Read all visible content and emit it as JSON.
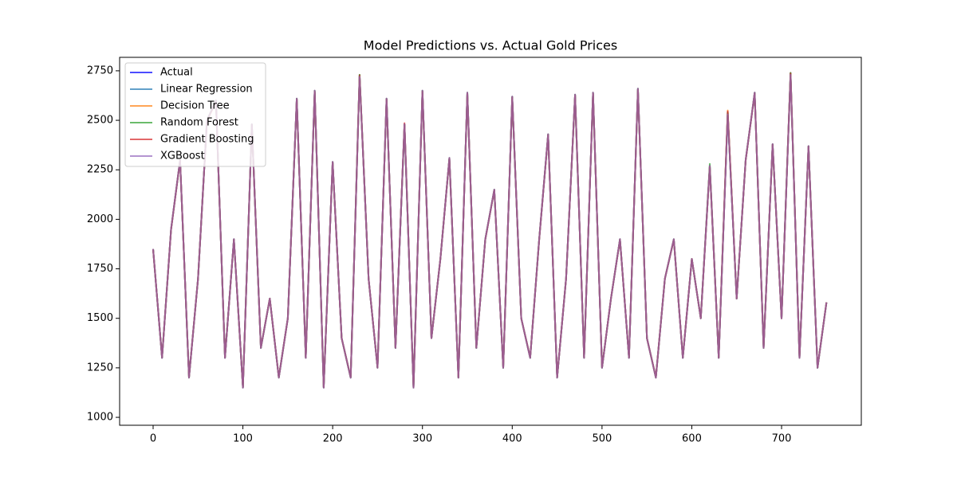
{
  "chart_data": {
    "type": "line",
    "title": "Model Predictions vs. Actual Gold Prices",
    "x": [
      0,
      10,
      20,
      30,
      40,
      50,
      60,
      70,
      80,
      90,
      100,
      110,
      120,
      130,
      140,
      150,
      160,
      170,
      180,
      190,
      200,
      210,
      220,
      230,
      240,
      250,
      260,
      270,
      280,
      290,
      300,
      310,
      320,
      330,
      340,
      350,
      360,
      370,
      380,
      390,
      400,
      410,
      420,
      430,
      440,
      450,
      460,
      470,
      480,
      490,
      500,
      510,
      520,
      530,
      540,
      550,
      560,
      570,
      580,
      590,
      600,
      610,
      620,
      630,
      640,
      650,
      660,
      670,
      680,
      690,
      700,
      710,
      720,
      730,
      740,
      750
    ],
    "series": [
      {
        "name": "Actual",
        "color": "#0000ff",
        "values": [
          1850,
          1300,
          1950,
          2300,
          1200,
          1700,
          2500,
          2600,
          1300,
          1900,
          1150,
          2480,
          1350,
          1600,
          1200,
          1500,
          2610,
          1300,
          2650,
          1150,
          2290,
          1400,
          1200,
          2730,
          1700,
          1250,
          2610,
          1350,
          2480,
          1150,
          2650,
          1400,
          1800,
          2310,
          1200,
          2640,
          1350,
          1900,
          2150,
          1250,
          2620,
          1500,
          1300,
          1900,
          2430,
          1200,
          1700,
          2630,
          1300,
          2640,
          1250,
          1600,
          1900,
          1300,
          2660,
          1400,
          1200,
          1700,
          1900,
          1300,
          1800,
          1500,
          2270,
          1300,
          2540,
          1600,
          2300,
          2640,
          1350,
          2380,
          1500,
          2740,
          1300,
          2370,
          1250,
          1580
        ]
      },
      {
        "name": "Linear Regression",
        "color": "#1f77b4",
        "values": [
          1848,
          1302,
          1948,
          2298,
          1202,
          1699,
          2497,
          2598,
          1302,
          1898,
          1152,
          2477,
          1351,
          1599,
          1202,
          1500,
          2607,
          1302,
          2646,
          1152,
          2288,
          1400,
          1202,
          2726,
          1699,
          1251,
          2607,
          1351,
          2477,
          1152,
          2646,
          1400,
          1799,
          2308,
          1202,
          2637,
          1351,
          1898,
          2148,
          1251,
          2617,
          1500,
          1302,
          1898,
          2427,
          1202,
          1699,
          2627,
          1302,
          2637,
          1251,
          1599,
          1898,
          1302,
          2656,
          1400,
          1202,
          1699,
          1898,
          1302,
          1799,
          1500,
          2268,
          1302,
          2537,
          1599,
          2298,
          2637,
          1351,
          2378,
          1500,
          2736,
          1302,
          2368,
          1251,
          1579
        ]
      },
      {
        "name": "Decision Tree",
        "color": "#ff7f0e",
        "values": [
          1850,
          1300,
          1950,
          2300,
          1200,
          1700,
          2500,
          2600,
          1300,
          1900,
          1150,
          2480,
          1350,
          1600,
          1200,
          1500,
          2610,
          1300,
          2650,
          1150,
          2290,
          1400,
          1200,
          2730,
          1700,
          1250,
          2610,
          1350,
          2480,
          1150,
          2650,
          1400,
          1800,
          2310,
          1200,
          2640,
          1350,
          1900,
          2150,
          1250,
          2620,
          1500,
          1300,
          1900,
          2430,
          1200,
          1700,
          2630,
          1300,
          2640,
          1250,
          1600,
          1900,
          1300,
          2660,
          1400,
          1200,
          1700,
          1900,
          1300,
          1800,
          1500,
          2270,
          1300,
          2550,
          1600,
          2300,
          2640,
          1350,
          2380,
          1500,
          2740,
          1300,
          2370,
          1250,
          1580
        ]
      },
      {
        "name": "Random Forest",
        "color": "#2ca02c",
        "values": [
          1849,
          1301,
          1949,
          2299,
          1201,
          1700,
          2499,
          2599,
          1301,
          1899,
          1151,
          2479,
          1350,
          1600,
          1201,
          1500,
          2609,
          1301,
          2649,
          1151,
          2289,
          1400,
          1201,
          2729,
          1700,
          1250,
          2609,
          1350,
          2479,
          1151,
          2649,
          1400,
          1800,
          2309,
          1201,
          2639,
          1350,
          1899,
          2149,
          1250,
          2619,
          1500,
          1301,
          1899,
          2429,
          1201,
          1700,
          2629,
          1301,
          2639,
          1250,
          1600,
          1899,
          1301,
          2659,
          1400,
          1201,
          1700,
          1899,
          1301,
          1800,
          1500,
          2280,
          1301,
          2539,
          1600,
          2299,
          2639,
          1350,
          2379,
          1500,
          2739,
          1301,
          2369,
          1250,
          1580
        ]
      },
      {
        "name": "Gradient Boosting",
        "color": "#d62728",
        "values": [
          1848,
          1303,
          1947,
          2297,
          1203,
          1700,
          2496,
          2596,
          1303,
          1897,
          1153,
          2476,
          1352,
          1600,
          1203,
          1500,
          2606,
          1303,
          2645,
          1153,
          2287,
          1400,
          1203,
          2725,
          1700,
          1252,
          2606,
          1352,
          2486,
          1153,
          2645,
          1400,
          1800,
          2307,
          1203,
          2636,
          1352,
          1897,
          2147,
          1252,
          2616,
          1500,
          1303,
          1897,
          2426,
          1203,
          1700,
          2626,
          1303,
          2636,
          1252,
          1600,
          1897,
          1303,
          2655,
          1400,
          1203,
          1700,
          1897,
          1303,
          1800,
          1500,
          2267,
          1303,
          2545,
          1600,
          2297,
          2636,
          1352,
          2377,
          1500,
          2735,
          1303,
          2367,
          1252,
          1580
        ]
      },
      {
        "name": "XGBoost",
        "color": "#9467bd",
        "values": [
          1850,
          1300,
          1950,
          2300,
          1200,
          1700,
          2500,
          2600,
          1300,
          1900,
          1150,
          2480,
          1350,
          1600,
          1200,
          1500,
          2610,
          1300,
          2650,
          1150,
          2290,
          1400,
          1200,
          2720,
          1700,
          1250,
          2610,
          1350,
          2480,
          1150,
          2650,
          1400,
          1800,
          2310,
          1200,
          2640,
          1350,
          1900,
          2150,
          1250,
          2620,
          1500,
          1300,
          1900,
          2430,
          1200,
          1700,
          2630,
          1300,
          2640,
          1250,
          1600,
          1900,
          1300,
          2660,
          1400,
          1200,
          1700,
          1900,
          1300,
          1800,
          1500,
          2270,
          1300,
          2530,
          1600,
          2300,
          2640,
          1350,
          2380,
          1500,
          2730,
          1300,
          2370,
          1250,
          1580
        ]
      }
    ],
    "xlim": [
      -37.3,
      788.8
    ],
    "ylim": [
      960,
      2818
    ],
    "xticks": [
      0,
      100,
      200,
      300,
      400,
      500,
      600,
      700
    ],
    "yticks": [
      1000,
      1250,
      1500,
      1750,
      2000,
      2250,
      2500,
      2750
    ],
    "legend": "upper left"
  }
}
